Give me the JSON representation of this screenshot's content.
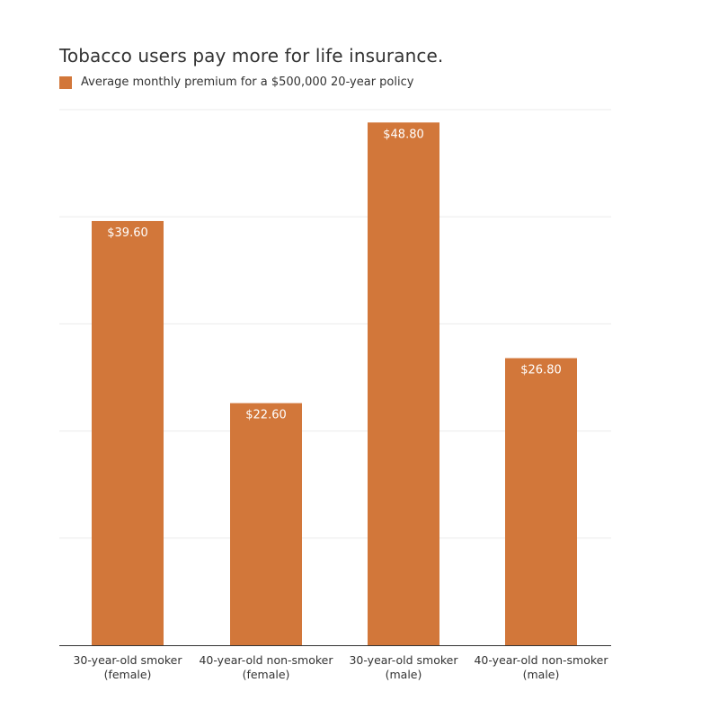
{
  "chart_data": {
    "type": "bar",
    "title": "Tobacco users pay more for life insurance.",
    "categories": [
      [
        "30-year-old smoker",
        "(female)"
      ],
      [
        "40-year-old non-smoker",
        "(female)"
      ],
      [
        "30-year-old smoker",
        "(male)"
      ],
      [
        "40-year-old non-smoker",
        "(male)"
      ]
    ],
    "series": [
      {
        "name": "Average monthly premium for a $500,000 20-year policy",
        "values": [
          39.6,
          22.6,
          48.8,
          26.8
        ],
        "labels": [
          "$39.60",
          "$22.60",
          "$48.80",
          "$26.80"
        ]
      }
    ],
    "xlabel": "",
    "ylabel": "",
    "ylim": [
      0,
      50
    ],
    "gridlines": [
      10,
      20,
      30,
      40,
      50
    ],
    "grid": true,
    "legend": "top-left",
    "colors": {
      "bar": "#D2773A",
      "bar_label": "#ffffff",
      "grid": "#ebebeb",
      "axis": "#333333",
      "text": "#333333"
    }
  }
}
